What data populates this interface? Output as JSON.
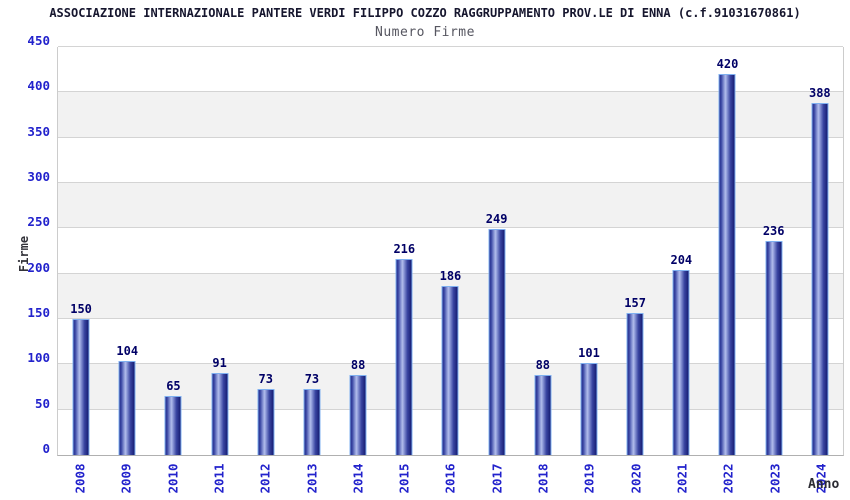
{
  "chart_data": {
    "type": "bar",
    "title": "ASSOCIAZIONE INTERNAZIONALE PANTERE VERDI FILIPPO COZZO RAGGRUPPAMENTO PROV.LE DI ENNA (c.f.91031670861)",
    "subtitle": "Numero Firme",
    "xlabel": "Anno",
    "ylabel": "Firme",
    "categories": [
      "2008",
      "2009",
      "2010",
      "2011",
      "2012",
      "2013",
      "2014",
      "2015",
      "2016",
      "2017",
      "2018",
      "2019",
      "2020",
      "2021",
      "2022",
      "2023",
      "2024"
    ],
    "values": [
      150,
      104,
      65,
      91,
      73,
      73,
      88,
      216,
      186,
      249,
      88,
      101,
      157,
      204,
      420,
      236,
      388
    ],
    "ylim": [
      0,
      450
    ],
    "ytick_step": 50,
    "legend": "none",
    "grid": "horizontal gridlines with alternating shaded bands",
    "colors": {
      "bar_fill": "#2b3490",
      "bar_highlight": "#b2bdec",
      "bar_border": "#7fb0f0",
      "tick_label": "#2222cc",
      "value_label": "#000066",
      "title": "#16162e",
      "subtitle": "#565660",
      "axis_title": "#33333a",
      "band": "#f2f2f2",
      "gridline": "#d4d4d4"
    }
  }
}
